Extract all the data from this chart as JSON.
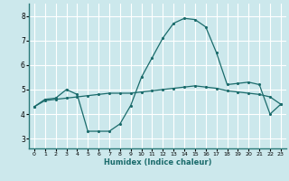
{
  "xlabel": "Humidex (Indice chaleur)",
  "bg_color": "#cce8ec",
  "grid_color": "#ffffff",
  "line_color": "#1a6b6b",
  "x_ticks": [
    0,
    1,
    2,
    3,
    4,
    5,
    6,
    7,
    8,
    9,
    10,
    11,
    12,
    13,
    14,
    15,
    16,
    17,
    18,
    19,
    20,
    21,
    22,
    23
  ],
  "y_ticks": [
    3,
    4,
    5,
    6,
    7,
    8
  ],
  "ylim": [
    2.6,
    8.5
  ],
  "xlim": [
    -0.5,
    23.5
  ],
  "line1_x": [
    0,
    1,
    2,
    3,
    4,
    5,
    6,
    7,
    8,
    9,
    10,
    11,
    12,
    13,
    14,
    15,
    16,
    17,
    18,
    19,
    20,
    21,
    22,
    23
  ],
  "line1_y": [
    4.3,
    4.6,
    4.65,
    5.0,
    4.8,
    3.3,
    3.3,
    3.3,
    3.6,
    4.35,
    5.5,
    6.3,
    7.1,
    7.7,
    7.9,
    7.85,
    7.55,
    6.5,
    5.2,
    5.25,
    5.3,
    5.2,
    4.0,
    4.4
  ],
  "line2_x": [
    0,
    1,
    2,
    3,
    4,
    5,
    6,
    7,
    8,
    9,
    10,
    11,
    12,
    13,
    14,
    15,
    16,
    17,
    18,
    19,
    20,
    21,
    22,
    23
  ],
  "line2_y": [
    4.3,
    4.55,
    4.6,
    4.65,
    4.7,
    4.75,
    4.8,
    4.85,
    4.85,
    4.85,
    4.9,
    4.95,
    5.0,
    5.05,
    5.1,
    5.15,
    5.1,
    5.05,
    4.95,
    4.9,
    4.85,
    4.8,
    4.7,
    4.4
  ]
}
